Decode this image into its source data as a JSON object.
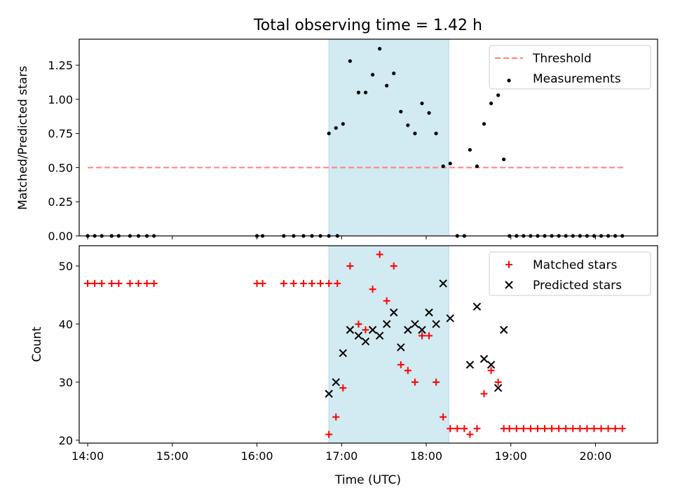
{
  "figure": {
    "title": "Total observing time = 1.42 h"
  },
  "colors": {
    "threshold": "#ff7f7f",
    "measurement": "#000000",
    "matched": "#ff0000",
    "predicted": "#000000",
    "span_fill": "#add8e6"
  },
  "chart_data": [
    {
      "type": "scatter",
      "title": "Total observing time = 1.42 h",
      "xlabel": "",
      "ylabel": "Matched/Predicted stars",
      "xlim": [
        "13:54",
        "20:44"
      ],
      "ylim": [
        0,
        1.44
      ],
      "yticks": [
        0.0,
        0.25,
        0.5,
        0.75,
        1.0,
        1.25
      ],
      "ytick_labels": [
        "0.00",
        "0.25",
        "0.50",
        "0.75",
        "1.00",
        "1.25"
      ],
      "grid": false,
      "legend_position": "upper right",
      "shaded_span": [
        "16:51",
        "18:16"
      ],
      "series": [
        {
          "name": "Threshold",
          "kind": "dashed-line",
          "x": [
            "14:00",
            "20:20"
          ],
          "y": [
            0.5,
            0.5
          ]
        },
        {
          "name": "Measurements",
          "kind": "points",
          "x": [
            "14:00",
            "14:05",
            "14:10",
            "14:17",
            "14:22",
            "14:30",
            "14:36",
            "14:42",
            "14:47",
            "16:00",
            "16:04",
            "16:19",
            "16:26",
            "16:33",
            "16:39",
            "16:45",
            "16:51",
            "16:57",
            "16:51",
            "16:56",
            "17:01",
            "17:06",
            "17:12",
            "17:17",
            "17:22",
            "17:27",
            "17:32",
            "17:37",
            "17:42",
            "17:47",
            "17:52",
            "17:57",
            "18:02",
            "18:07",
            "18:12",
            "18:17",
            "18:22",
            "18:27",
            "18:31",
            "18:36",
            "18:41",
            "18:46",
            "18:51",
            "18:55",
            "18:59",
            "19:04",
            "19:09",
            "19:14",
            "19:19",
            "19:24",
            "19:29",
            "19:34",
            "19:39",
            "19:44",
            "19:49",
            "19:54",
            "19:59",
            "20:04",
            "20:09",
            "20:14",
            "20:19"
          ],
          "y": [
            0,
            0,
            0,
            0,
            0,
            0,
            0,
            0,
            0,
            0,
            0,
            0,
            0,
            0,
            0,
            0,
            0,
            0,
            0.75,
            0.79,
            0.82,
            1.28,
            1.05,
            1.05,
            1.18,
            1.37,
            1.1,
            1.19,
            0.91,
            0.81,
            0.75,
            0.97,
            0.9,
            0.75,
            0.51,
            0.53,
            0,
            0,
            0.63,
            0.51,
            0.82,
            0.97,
            1.03,
            0.56,
            0,
            0,
            0,
            0,
            0,
            0,
            0,
            0,
            0,
            0,
            0,
            0,
            0,
            0,
            0,
            0,
            0
          ]
        }
      ]
    },
    {
      "type": "scatter",
      "title": "",
      "xlabel": "Time (UTC)",
      "ylabel": "Count",
      "xlim": [
        "13:54",
        "20:44"
      ],
      "ylim": [
        19.5,
        53.5
      ],
      "yticks": [
        20,
        30,
        40,
        50
      ],
      "ytick_labels": [
        "20",
        "30",
        "40",
        "50"
      ],
      "xticks": [
        "14:00",
        "15:00",
        "16:00",
        "17:00",
        "18:00",
        "19:00",
        "20:00"
      ],
      "xtick_labels": [
        "14:00",
        "15:00",
        "16:00",
        "17:00",
        "18:00",
        "19:00",
        "20:00"
      ],
      "grid": false,
      "legend_position": "upper right",
      "shaded_span": [
        "16:51",
        "18:16"
      ],
      "series": [
        {
          "name": "Matched stars",
          "marker": "plus",
          "x": [
            "14:00",
            "14:05",
            "14:10",
            "14:17",
            "14:22",
            "14:30",
            "14:36",
            "14:42",
            "14:47",
            "16:00",
            "16:04",
            "16:19",
            "16:26",
            "16:33",
            "16:39",
            "16:45",
            "16:51",
            "16:57",
            "16:51",
            "16:56",
            "17:01",
            "17:06",
            "17:12",
            "17:17",
            "17:22",
            "17:27",
            "17:32",
            "17:37",
            "17:42",
            "17:47",
            "17:52",
            "17:57",
            "18:02",
            "18:07",
            "18:12",
            "18:17",
            "18:22",
            "18:27",
            "18:31",
            "18:36",
            "18:41",
            "18:46",
            "18:51",
            "18:55",
            "18:59",
            "19:04",
            "19:09",
            "19:14",
            "19:19",
            "19:24",
            "19:29",
            "19:34",
            "19:39",
            "19:44",
            "19:49",
            "19:54",
            "19:59",
            "20:04",
            "20:09",
            "20:14",
            "20:19"
          ],
          "y": [
            47,
            47,
            47,
            47,
            47,
            47,
            47,
            47,
            47,
            47,
            47,
            47,
            47,
            47,
            47,
            47,
            47,
            47,
            21,
            24,
            29,
            50,
            40,
            39,
            46,
            52,
            44,
            50,
            33,
            32,
            30,
            38,
            38,
            30,
            24,
            22,
            22,
            22,
            21,
            22,
            28,
            32,
            30,
            22,
            22,
            22,
            22,
            22,
            22,
            22,
            22,
            22,
            22,
            22,
            22,
            22,
            22,
            22,
            22,
            22,
            22
          ]
        },
        {
          "name": "Predicted stars",
          "marker": "x",
          "x": [
            "16:51",
            "16:56",
            "17:01",
            "17:06",
            "17:12",
            "17:17",
            "17:22",
            "17:27",
            "17:32",
            "17:37",
            "17:42",
            "17:47",
            "17:52",
            "17:57",
            "18:02",
            "18:07",
            "18:12",
            "18:17",
            "18:31",
            "18:36",
            "18:41",
            "18:46",
            "18:51",
            "18:55"
          ],
          "y": [
            28,
            30,
            35,
            39,
            38,
            37,
            39,
            38,
            40,
            42,
            36,
            39,
            40,
            39,
            42,
            40,
            47,
            41,
            33,
            43,
            34,
            33,
            29,
            39
          ]
        }
      ]
    }
  ]
}
